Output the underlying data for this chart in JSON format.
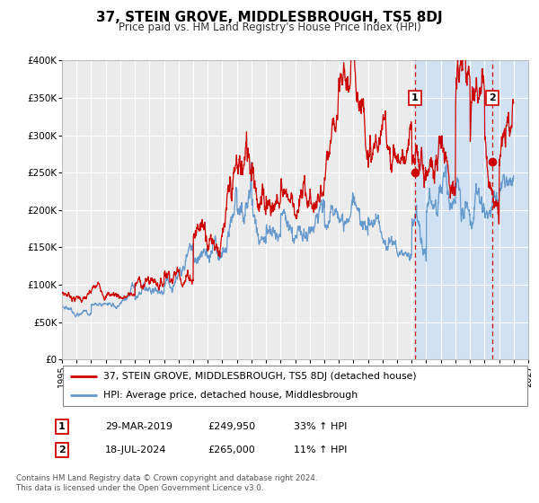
{
  "title": "37, STEIN GROVE, MIDDLESBROUGH, TS5 8DJ",
  "subtitle": "Price paid vs. HM Land Registry's House Price Index (HPI)",
  "background_color": "#ffffff",
  "plot_bg_color": "#ebebeb",
  "grid_color": "#ffffff",
  "ylabel_ticks": [
    "£0",
    "£50K",
    "£100K",
    "£150K",
    "£200K",
    "£250K",
    "£300K",
    "£350K",
    "£400K"
  ],
  "ytick_vals": [
    0,
    50000,
    100000,
    150000,
    200000,
    250000,
    300000,
    350000,
    400000
  ],
  "xmin": 1995.0,
  "xmax": 2027.0,
  "ymin": 0,
  "ymax": 400000,
  "sale1_date": 2019.23,
  "sale1_price": 249950,
  "sale2_date": 2024.54,
  "sale2_price": 265000,
  "vline1_x": 2019.23,
  "vline2_x": 2024.54,
  "shade_start": 2019.23,
  "shade_end": 2027.0,
  "red_line_color": "#cc0000",
  "blue_line_color": "#6699cc",
  "legend1_label": "37, STEIN GROVE, MIDDLESBROUGH, TS5 8DJ (detached house)",
  "legend2_label": "HPI: Average price, detached house, Middlesbrough",
  "table_row1": [
    "1",
    "29-MAR-2019",
    "£249,950",
    "33% ↑ HPI"
  ],
  "table_row2": [
    "2",
    "18-JUL-2024",
    "£265,000",
    "11% ↑ HPI"
  ],
  "footer_line1": "Contains HM Land Registry data © Crown copyright and database right 2024.",
  "footer_line2": "This data is licensed under the Open Government Licence v3.0."
}
